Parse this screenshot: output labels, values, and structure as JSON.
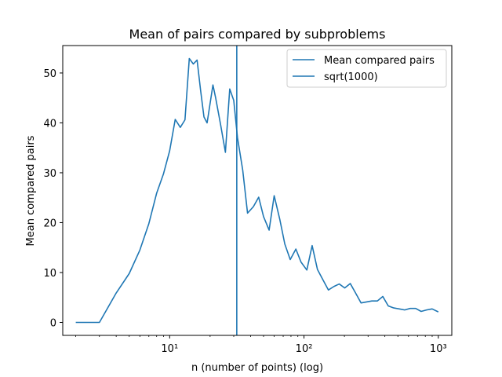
{
  "chart_data": {
    "type": "line",
    "title": "Mean of pairs compared by subproblems",
    "xlabel": "n (number of points) (log)",
    "ylabel": "Mean compared pairs",
    "xscale": "log",
    "xlim": [
      1.6,
      1260
    ],
    "ylim": [
      -2.6,
      55.5
    ],
    "grid": false,
    "legend_position": "top-right",
    "colors": {
      "series": "#1f77b4"
    },
    "x_major_ticks": [
      10,
      100,
      1000
    ],
    "x_tick_labels": [
      "10¹",
      "10²",
      "10³"
    ],
    "y_ticks": [
      0,
      10,
      20,
      30,
      40,
      50
    ],
    "y_tick_labels": [
      "0",
      "10",
      "20",
      "30",
      "40",
      "50"
    ],
    "series": [
      {
        "name": "Mean compared pairs",
        "x": [
          2,
          3,
          4,
          5,
          6,
          7,
          8,
          9,
          10,
          11,
          12,
          13,
          14,
          15,
          16,
          17,
          18,
          19,
          21,
          22,
          24,
          26,
          28,
          30,
          32,
          35,
          38,
          42,
          46,
          50,
          55,
          60,
          66,
          72,
          79,
          87,
          95,
          105,
          115,
          126,
          138,
          152,
          167,
          183,
          201,
          221,
          242,
          266,
          292,
          320,
          352,
          386,
          424,
          466,
          512,
          562,
          617,
          678,
          745,
          818,
          899,
          1000
        ],
        "y": [
          0,
          0,
          5.9,
          9.8,
          14.5,
          19.8,
          25.9,
          29.8,
          34.4,
          40.7,
          39.1,
          40.6,
          52.9,
          51.8,
          52.6,
          46.5,
          41.2,
          40.0,
          47.6,
          45.0,
          39.5,
          34.1,
          46.8,
          44.5,
          37.0,
          30.5,
          21.9,
          23.2,
          25.1,
          21.2,
          18.5,
          25.4,
          20.7,
          15.7,
          12.6,
          14.7,
          12.1,
          10.5,
          15.4,
          10.6,
          8.6,
          6.5,
          7.2,
          7.7,
          6.9,
          7.8,
          5.9,
          3.9,
          4.1,
          4.3,
          4.3,
          5.2,
          3.3,
          2.9,
          2.7,
          2.5,
          2.8,
          2.8,
          2.2,
          2.5,
          2.7,
          2.1
        ]
      },
      {
        "name": "sqrt(1000)",
        "vline_x": 31.6
      }
    ]
  }
}
